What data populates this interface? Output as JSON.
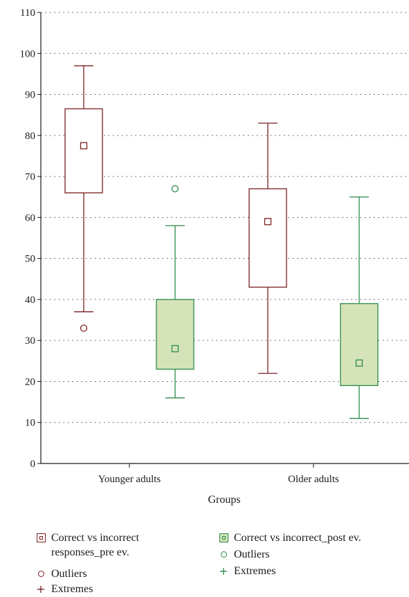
{
  "chart_data": {
    "type": "boxplot",
    "xlabel": "Groups",
    "ylabel": "",
    "ylim": [
      0,
      110
    ],
    "yticks": [
      0,
      10,
      20,
      30,
      40,
      50,
      60,
      70,
      80,
      90,
      100,
      110
    ],
    "grid": "horizontal-dotted",
    "categories": [
      "Younger adults",
      "Older adults"
    ],
    "series": [
      {
        "name": "Correct vs incorrect responses_pre ev.",
        "color": "#7a1e22",
        "fill": "#ffffff",
        "boxes": [
          {
            "whisker_low": 37,
            "q1": 66,
            "q3": 86.5,
            "whisker_high": 97,
            "mean": 77.5,
            "outliers": [
              33
            ],
            "extremes": []
          },
          {
            "whisker_low": 22,
            "q1": 43,
            "q3": 67,
            "whisker_high": 83,
            "mean": 59,
            "outliers": [],
            "extremes": []
          }
        ]
      },
      {
        "name": "Correct vs incorrect_post ev.",
        "color": "#2a8a4a",
        "fill": "#d5e3b8",
        "boxes": [
          {
            "whisker_low": 16,
            "q1": 23,
            "q3": 40,
            "whisker_high": 58,
            "mean": 28,
            "outliers": [
              67
            ],
            "extremes": []
          },
          {
            "whisker_low": 11,
            "q1": 19,
            "q3": 39,
            "whisker_high": 65,
            "mean": 24.5,
            "outliers": [],
            "extremes": []
          }
        ]
      }
    ],
    "legend": {
      "placement": "bottom",
      "items": [
        {
          "label": "Correct vs incorrect\nresponses_pre ev.",
          "symbol": "box",
          "color": "#7a1e22",
          "fill": "#ffffff"
        },
        {
          "label": "Outliers",
          "symbol": "circle",
          "color": "#7a1e22"
        },
        {
          "label": "Extremes",
          "symbol": "plus",
          "color": "#7a1e22"
        },
        {
          "label": "Correct vs incorrect_post ev.",
          "symbol": "box",
          "color": "#2a8a4a",
          "fill": "#d5e3b8"
        },
        {
          "label": "Outliers",
          "symbol": "circle",
          "color": "#2a8a4a"
        },
        {
          "label": "Extremes",
          "symbol": "plus",
          "color": "#2a8a4a"
        }
      ]
    }
  }
}
